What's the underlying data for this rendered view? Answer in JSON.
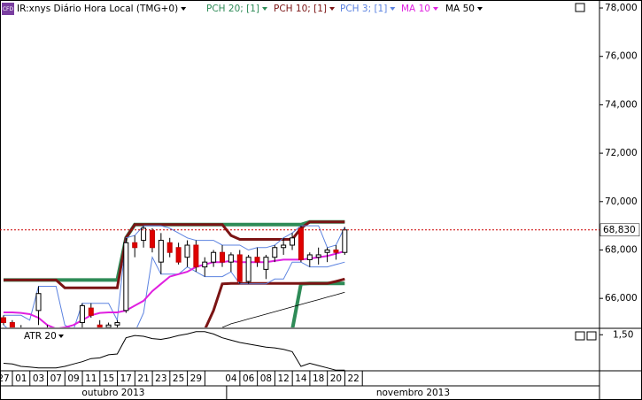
{
  "chart_data": {
    "type": "candlestick",
    "badge": "CFD",
    "title": "IR:xnys Diário Hora Local (TMG+0)",
    "categories": [
      "27",
      null,
      "01",
      null,
      "03",
      null,
      "07",
      null,
      "09",
      null,
      "11",
      null,
      "15",
      null,
      "17",
      null,
      "21",
      null,
      "23",
      null,
      "25",
      null,
      "29",
      null,
      null,
      null,
      "04",
      null,
      "06",
      null,
      "08",
      null,
      "12",
      null,
      "14",
      null,
      "18",
      null,
      "20",
      null,
      "22"
    ],
    "months": [
      {
        "label": "outubro 2013",
        "start": 0
      },
      {
        "label": "novembro 2013",
        "start": 26
      }
    ],
    "ohlc": {
      "open": [
        65200,
        65000,
        64700,
        64600,
        65500,
        64700,
        64400,
        64300,
        64500,
        65000,
        65600,
        64900,
        64800,
        64900,
        65500,
        68300,
        68400,
        68800,
        67500,
        68300,
        68100,
        67700,
        68200,
        67300,
        67500,
        67900,
        67500,
        67800,
        66700,
        67700,
        67200,
        67700,
        68100,
        68200,
        68900,
        67600,
        67700,
        67900,
        68000,
        67900,
        null
      ],
      "high": [
        65300,
        65100,
        64900,
        64800,
        66500,
        64900,
        64600,
        64600,
        64700,
        65800,
        65800,
        65100,
        65000,
        65100,
        68500,
        68600,
        69000,
        68900,
        68700,
        68500,
        68300,
        68400,
        68400,
        67700,
        68000,
        68200,
        67900,
        68000,
        67800,
        68100,
        67800,
        68200,
        68500,
        68700,
        69000,
        67900,
        68100,
        68100,
        68200,
        68950,
        null
      ],
      "low": [
        64900,
        64600,
        64400,
        64300,
        64900,
        64400,
        64200,
        64200,
        64300,
        64800,
        65200,
        64700,
        64500,
        64600,
        65400,
        67700,
        68100,
        67900,
        67000,
        67700,
        67400,
        67300,
        67100,
        66900,
        67300,
        67300,
        67100,
        66600,
        66600,
        67300,
        66800,
        67500,
        67800,
        68000,
        67500,
        67300,
        67400,
        67500,
        67600,
        67800,
        null
      ],
      "close": [
        65000,
        64700,
        64600,
        64700,
        66200,
        64500,
        64300,
        64500,
        64400,
        65700,
        65300,
        64800,
        64900,
        65000,
        68300,
        68100,
        68900,
        68100,
        68400,
        67900,
        67500,
        68200,
        67300,
        67500,
        67900,
        67500,
        67800,
        66700,
        67700,
        67500,
        67700,
        68100,
        68200,
        68500,
        67600,
        67800,
        67800,
        68000,
        67900,
        68830,
        null
      ]
    },
    "series": [
      {
        "name": "PCH 20; [1]",
        "color": "#2e8b57",
        "width": 4,
        "values": [
          66760,
          66760,
          66760,
          66760,
          66760,
          66760,
          66760,
          66760,
          66760,
          66760,
          66760,
          66760,
          66760,
          66760,
          68500,
          69050,
          69050,
          69050,
          69050,
          69050,
          69050,
          69050,
          69050,
          69050,
          69050,
          69050,
          69050,
          69050,
          69050,
          69050,
          69050,
          69050,
          69050,
          69050,
          69050,
          69160,
          69160,
          69160,
          69160,
          69160,
          null
        ]
      },
      {
        "name": "PCH 20; [1]",
        "color": "#2e8b57",
        "width": 4,
        "values": [
          null,
          null,
          null,
          null,
          null,
          null,
          null,
          null,
          null,
          null,
          null,
          null,
          null,
          null,
          null,
          null,
          null,
          null,
          null,
          null,
          null,
          null,
          null,
          null,
          null,
          null,
          null,
          null,
          null,
          null,
          null,
          null,
          null,
          64700,
          66600,
          66620,
          66620,
          66620,
          66620,
          66620,
          null
        ]
      },
      {
        "name": "PCH 10; [1]",
        "color": "#7b1414",
        "width": 3,
        "values": [
          66760,
          66760,
          66760,
          66760,
          66760,
          66760,
          66760,
          66440,
          66440,
          66440,
          66440,
          66440,
          66440,
          66440,
          68500,
          69050,
          69050,
          69050,
          69050,
          69050,
          69050,
          69050,
          69050,
          69050,
          69050,
          69050,
          68600,
          68440,
          68440,
          68440,
          68440,
          68440,
          68440,
          68440,
          68900,
          69160,
          69160,
          69160,
          69160,
          69160,
          null
        ]
      },
      {
        "name": "PCH 10; [1]",
        "color": "#7b1414",
        "width": 3,
        "values": [
          null,
          null,
          null,
          null,
          null,
          null,
          null,
          null,
          null,
          null,
          null,
          null,
          null,
          null,
          null,
          null,
          null,
          null,
          null,
          null,
          null,
          null,
          null,
          64700,
          65500,
          66600,
          66620,
          66620,
          66620,
          66620,
          66620,
          66620,
          66620,
          66620,
          66620,
          66620,
          66620,
          66620,
          66700,
          66800,
          null
        ]
      },
      {
        "name": "PCH 3; [1]",
        "color": "#5b82e0",
        "width": 1,
        "values": [
          65300,
          65300,
          65300,
          65100,
          66500,
          66500,
          66500,
          64900,
          64700,
          65800,
          65800,
          65800,
          65800,
          65100,
          68500,
          68600,
          69000,
          69000,
          69000,
          68900,
          68700,
          68500,
          68400,
          68400,
          68400,
          68200,
          68200,
          68200,
          68000,
          68100,
          68100,
          68200,
          68500,
          68700,
          69000,
          69000,
          69000,
          68100,
          68200,
          68950,
          null
        ]
      },
      {
        "name": "PCH 3; [1]",
        "color": "#5b82e0",
        "width": 1,
        "values": [
          64900,
          64600,
          64400,
          64300,
          64300,
          64300,
          64200,
          64200,
          64200,
          64300,
          64300,
          64700,
          64500,
          64500,
          64500,
          64600,
          65400,
          67700,
          67000,
          67000,
          67000,
          67300,
          67100,
          66900,
          66900,
          66900,
          67100,
          66600,
          66600,
          66600,
          66600,
          66800,
          66800,
          67500,
          67500,
          67300,
          67300,
          67300,
          67400,
          67500,
          null
        ]
      },
      {
        "name": "MA 10",
        "color": "#e020e0",
        "width": 2,
        "values": [
          65420,
          65420,
          65400,
          65350,
          65200,
          64900,
          64750,
          64800,
          64900,
          65100,
          65300,
          65400,
          65420,
          65420,
          65500,
          65700,
          65900,
          66300,
          66600,
          66900,
          67000,
          67100,
          67300,
          67400,
          67500,
          67500,
          67550,
          67500,
          67500,
          67500,
          67500,
          67550,
          67600,
          67600,
          67600,
          67650,
          67700,
          67750,
          67850,
          67950,
          null
        ]
      },
      {
        "name": "MA 50",
        "color": "#000000",
        "width": 0.8,
        "values": [
          null,
          null,
          null,
          null,
          null,
          null,
          null,
          null,
          null,
          null,
          null,
          null,
          null,
          null,
          null,
          null,
          null,
          null,
          null,
          null,
          null,
          null,
          null,
          null,
          null,
          64800,
          64950,
          65050,
          65150,
          65250,
          65350,
          65450,
          65550,
          65650,
          65750,
          65850,
          65950,
          66050,
          66150,
          66250,
          null
        ]
      }
    ],
    "ylim": [
      64800,
      78330
    ],
    "yticks": [
      {
        "value": 66000,
        "label": "66,000"
      },
      {
        "value": 68000,
        "label": "68,000"
      },
      {
        "value": 70000,
        "label": "70,000"
      },
      {
        "value": 72000,
        "label": "72,000"
      },
      {
        "value": 74000,
        "label": "74,000"
      },
      {
        "value": 76000,
        "label": "76,000"
      },
      {
        "value": 78000,
        "label": "78,000"
      }
    ],
    "last_price": {
      "value": 68830,
      "label": "68,830"
    },
    "last_price_color": "#cc0000",
    "atr": {
      "name": "ATR 20",
      "color": "#000000",
      "ylim": [
        1.032,
        1.572
      ],
      "yticks": [
        {
          "value": 1.5,
          "label": "1,50"
        }
      ],
      "values": [
        1.13,
        1.12,
        1.09,
        1.08,
        1.07,
        1.07,
        1.07,
        1.09,
        1.12,
        1.15,
        1.19,
        1.2,
        1.24,
        1.25,
        1.46,
        1.49,
        1.48,
        1.45,
        1.44,
        1.46,
        1.49,
        1.51,
        1.54,
        1.54,
        1.51,
        1.46,
        1.43,
        1.4,
        1.38,
        1.36,
        1.34,
        1.33,
        1.31,
        1.28,
        1.09,
        1.13,
        1.1,
        1.07,
        1.04,
        1.04,
        null
      ]
    }
  }
}
